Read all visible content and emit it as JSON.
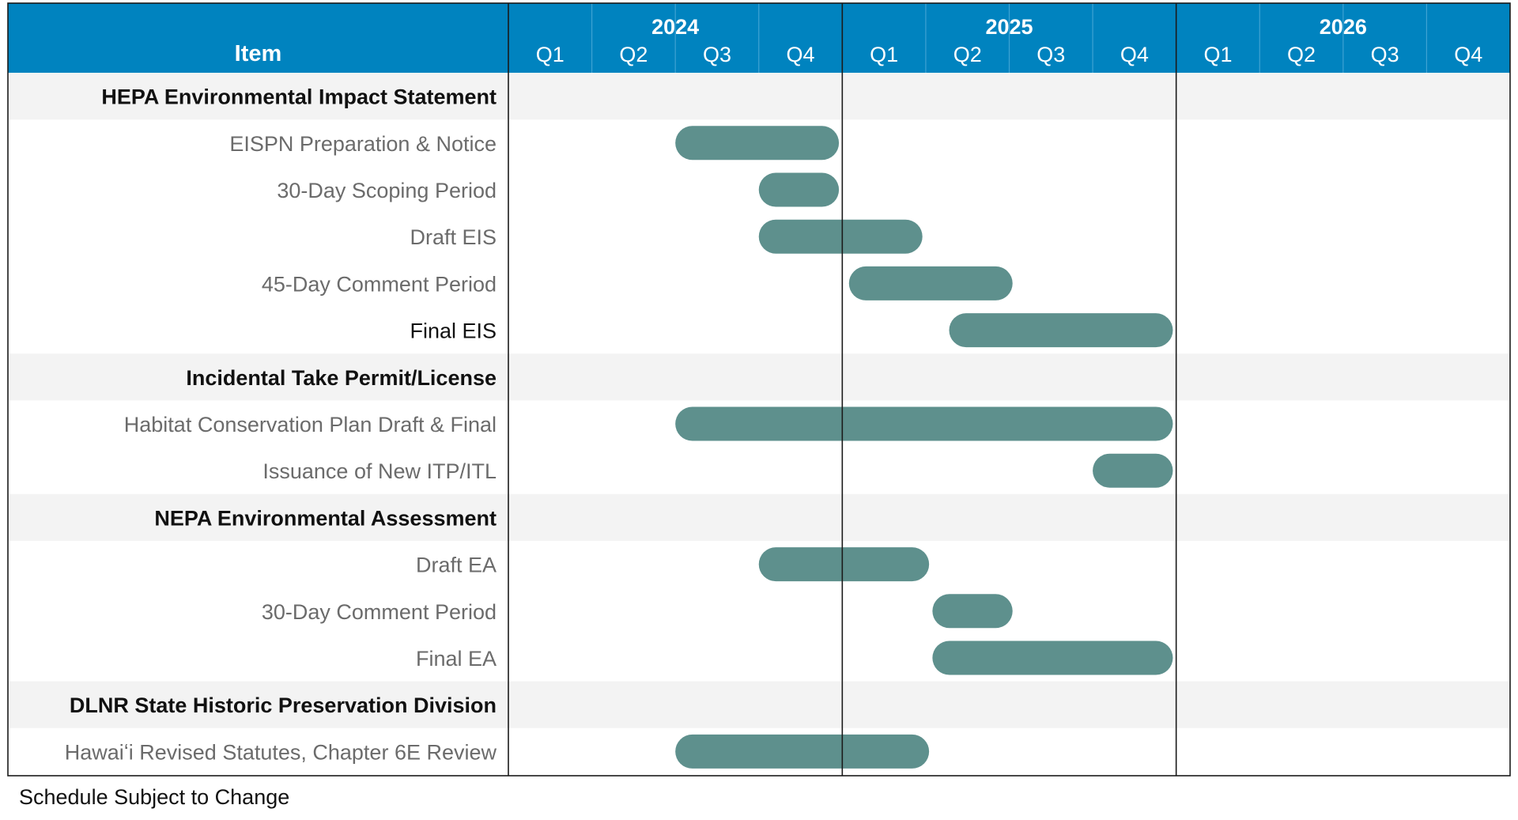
{
  "chart_data": {
    "type": "gantt",
    "title": "",
    "column_header": "Item",
    "years": [
      "2024",
      "2025",
      "2026"
    ],
    "quarters": [
      "Q1",
      "Q2",
      "Q3",
      "Q4"
    ],
    "rows": [
      {
        "label": "HEPA Environmental Impact Statement",
        "kind": "section"
      },
      {
        "label": "EISPN Preparation & Notice",
        "kind": "task",
        "start": 2024.5,
        "end": 2024.99
      },
      {
        "label": "30-Day Scoping Period",
        "kind": "task",
        "start": 2024.75,
        "end": 2024.99
      },
      {
        "label": "Draft EIS",
        "kind": "task",
        "start": 2024.75,
        "end": 2025.24
      },
      {
        "label": "45-Day Comment Period",
        "kind": "task",
        "start": 2025.02,
        "end": 2025.51
      },
      {
        "label": "Final EIS",
        "kind": "task",
        "start": 2025.32,
        "end": 2025.99,
        "dark_label": true
      },
      {
        "label": "Incidental Take Permit/License",
        "kind": "section"
      },
      {
        "label": "Habitat Conservation Plan Draft & Final",
        "kind": "task",
        "start": 2024.5,
        "end": 2025.99
      },
      {
        "label": "Issuance of New ITP/ITL",
        "kind": "task",
        "start": 2025.75,
        "end": 2025.99
      },
      {
        "label": "NEPA Environmental Assessment",
        "kind": "section"
      },
      {
        "label": "Draft EA",
        "kind": "task",
        "start": 2024.75,
        "end": 2025.26
      },
      {
        "label": "30-Day Comment Period",
        "kind": "task",
        "start": 2025.27,
        "end": 2025.51
      },
      {
        "label": "Final EA",
        "kind": "task",
        "start": 2025.27,
        "end": 2025.99
      },
      {
        "label": "DLNR State Historic Preservation Division",
        "kind": "section"
      },
      {
        "label": "Hawaiʻi Revised Statutes, Chapter 6E Review",
        "kind": "task",
        "start": 2024.5,
        "end": 2025.26
      }
    ],
    "colors": {
      "header": "#0083BF",
      "bar": "#5E908D",
      "section_band": "#F3F3F3",
      "task_label": "#6B6B6B",
      "section_label": "#111111"
    }
  },
  "footnote": "Schedule Subject to Change"
}
